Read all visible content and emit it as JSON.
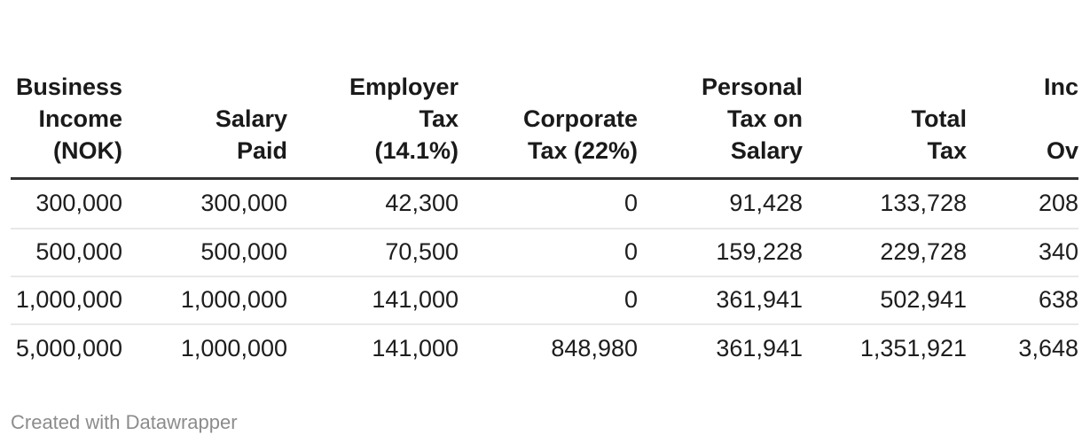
{
  "table": {
    "columns": [
      {
        "name": "business-income-nok",
        "header_lines": [
          "Business",
          "Income",
          "(NOK)"
        ]
      },
      {
        "name": "salary-paid",
        "header_lines": [
          "Salary",
          "Paid"
        ]
      },
      {
        "name": "employer-tax-14-1pct",
        "header_lines": [
          "Employer",
          "Tax",
          "(14.1%)"
        ]
      },
      {
        "name": "corporate-tax-22pct",
        "header_lines": [
          "Corporate",
          "Tax (22%)"
        ]
      },
      {
        "name": "personal-tax-on-salary",
        "header_lines": [
          "Personal",
          "Tax on",
          "Salary"
        ]
      },
      {
        "name": "total-tax",
        "header_lines": [
          "Total",
          "Tax"
        ]
      },
      {
        "name": "income-overall-clipped",
        "header_lines": [
          "Inc",
          "",
          "Ov"
        ],
        "clipped_at_right_edge": true
      }
    ],
    "rows": [
      {
        "cells": [
          "300,000",
          "300,000",
          "42,300",
          "0",
          "91,428",
          "133,728",
          "208"
        ]
      },
      {
        "cells": [
          "500,000",
          "500,000",
          "70,500",
          "0",
          "159,228",
          "229,728",
          "340"
        ]
      },
      {
        "cells": [
          "1,000,000",
          "1,000,000",
          "141,000",
          "0",
          "361,941",
          "502,941",
          "638"
        ]
      },
      {
        "cells": [
          "5,000,000",
          "1,000,000",
          "141,000",
          "848,980",
          "361,941",
          "1,351,921",
          "3,648"
        ]
      }
    ]
  },
  "footer": {
    "credit": "Created with Datawrapper"
  },
  "colors": {
    "background": "#ffffff",
    "header_text": "#1a1a1a",
    "body_text": "#1d1d1d",
    "header_rule": "#333333",
    "row_separator": "#e8e8e8",
    "credit_text": "#8c8c8c"
  },
  "chart_data": {
    "type": "table",
    "title": "",
    "columns": [
      "Business Income (NOK)",
      "Salary Paid",
      "Employer Tax (14.1%)",
      "Corporate Tax (22%)",
      "Personal Tax on Salary",
      "Total Tax",
      "Inc… Ov… (column clipped at right edge)"
    ],
    "rows": [
      [
        "300,000",
        "300,000",
        "42,300",
        "0",
        "91,428",
        "133,728",
        "208…"
      ],
      [
        "500,000",
        "500,000",
        "70,500",
        "0",
        "159,228",
        "229,728",
        "340…"
      ],
      [
        "1,000,000",
        "1,000,000",
        "141,000",
        "0",
        "361,941",
        "502,941",
        "638…"
      ],
      [
        "5,000,000",
        "1,000,000",
        "141,000",
        "848,980",
        "361,941",
        "1,351,921",
        "3,648…"
      ]
    ],
    "layout_hints": {
      "numeric_alignment": "right",
      "header_rule": "thick dark line under header",
      "row_separators": "thin light gray lines between body rows",
      "last_column_truncated_by_viewport": true
    }
  }
}
